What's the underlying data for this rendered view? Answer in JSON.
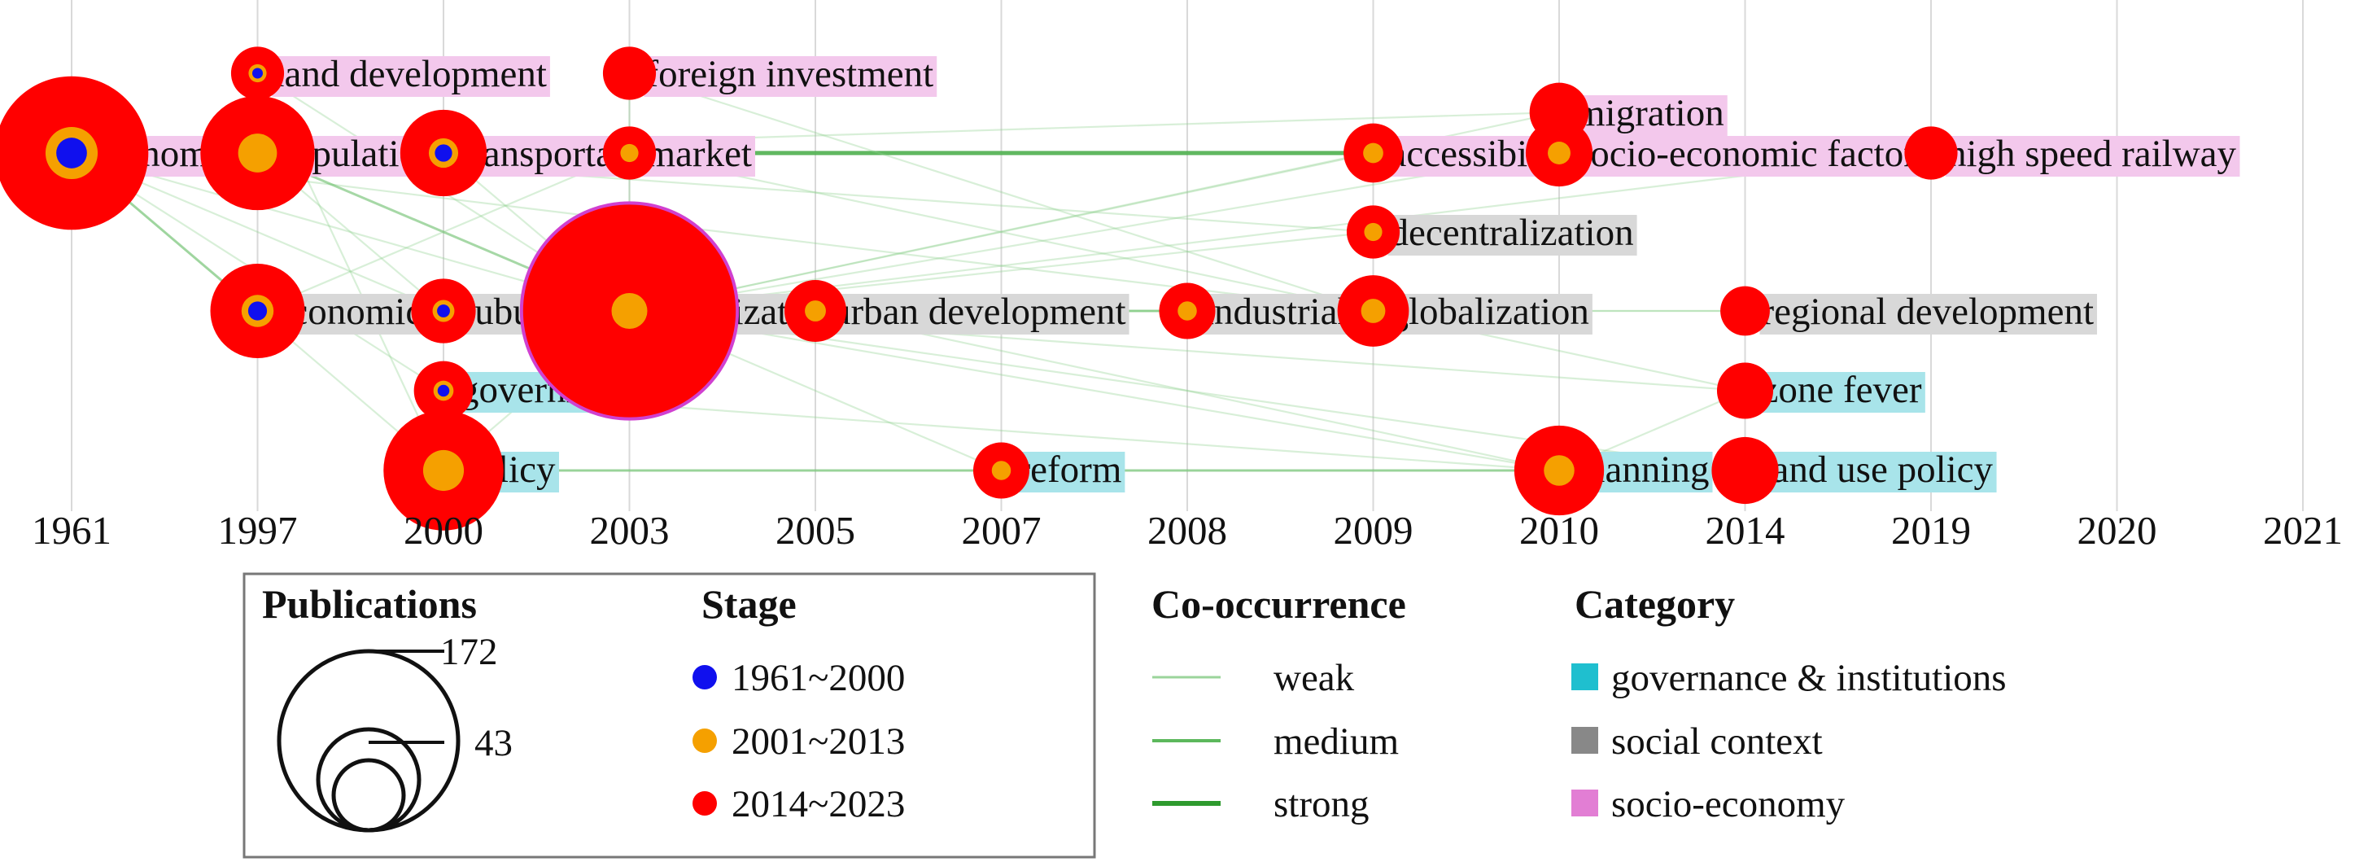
{
  "chart_data": {
    "type": "scatter",
    "title": "",
    "years": [
      "1961",
      "1997",
      "2000",
      "2003",
      "2005",
      "2007",
      "2008",
      "2009",
      "2010",
      "2014",
      "2019",
      "2020",
      "2021"
    ],
    "colors": {
      "stage1": "#1010ee",
      "stage2": "#f5a000",
      "stage3": "#ff0000",
      "edge": "#5cb85c",
      "governance": "#a8e4ea",
      "social": "#d8d8d8",
      "socio": "#f3c8ec",
      "gridline": "#d9d9d9"
    },
    "keywords": [
      {
        "label": "economy",
        "year": "1961",
        "row": 2,
        "count": 80,
        "category": "socio",
        "stage": 1
      },
      {
        "label": "land development",
        "year": "1997",
        "row": 0,
        "count": 5,
        "category": "socio",
        "stage": 1
      },
      {
        "label": "population",
        "year": "1997",
        "row": 2,
        "count": 40,
        "category": "socio",
        "stage": 2
      },
      {
        "label": "economic transition",
        "year": "1997",
        "row": 4,
        "count": 25,
        "category": "social",
        "stage": 1
      },
      {
        "label": "transportation",
        "year": "2000",
        "row": 2,
        "count": 20,
        "category": "socio",
        "stage": 1
      },
      {
        "label": "suburbanization",
        "year": "2000",
        "row": 4,
        "count": 9,
        "category": "social",
        "stage": 1
      },
      {
        "label": "government",
        "year": "2000",
        "row": 5,
        "count": 7,
        "category": "governance",
        "stage": 1
      },
      {
        "label": "policy",
        "year": "2000",
        "row": 6,
        "count": 45,
        "category": "governance",
        "stage": 2
      },
      {
        "label": "foreign investment",
        "year": "2003",
        "row": 0,
        "count": 5,
        "category": "socio",
        "stage": 3
      },
      {
        "label": "market",
        "year": "2003",
        "row": 2,
        "count": 5,
        "category": "socio",
        "stage": 2
      },
      {
        "label": "urbanization",
        "year": "2003",
        "row": 4,
        "count": 172,
        "category": "social",
        "stage": 2
      },
      {
        "label": "urban development",
        "year": "2005",
        "row": 4,
        "count": 8,
        "category": "social",
        "stage": 2
      },
      {
        "label": "reform",
        "year": "2007",
        "row": 6,
        "count": 6,
        "category": "governance",
        "stage": 2
      },
      {
        "label": "industrialization",
        "year": "2008",
        "row": 4,
        "count": 6,
        "category": "social",
        "stage": 2
      },
      {
        "label": "accessibility",
        "year": "2009",
        "row": 2,
        "count": 7,
        "category": "socio",
        "stage": 2
      },
      {
        "label": "decentralization",
        "year": "2009",
        "row": 3,
        "count": 5,
        "category": "social",
        "stage": 2
      },
      {
        "label": "globalization",
        "year": "2009",
        "row": 4,
        "count": 12,
        "category": "social",
        "stage": 2
      },
      {
        "label": "migration",
        "year": "2010",
        "row": 1,
        "count": 7,
        "category": "socio",
        "stage": 3
      },
      {
        "label": "socio-economic factor",
        "year": "2010",
        "row": 2,
        "count": 10,
        "category": "socio",
        "stage": 2
      },
      {
        "label": "planning",
        "year": "2010",
        "row": 6,
        "count": 22,
        "category": "governance",
        "stage": 2
      },
      {
        "label": "regional development",
        "year": "2014",
        "row": 4,
        "count": 4,
        "category": "social",
        "stage": 3
      },
      {
        "label": "zone fever",
        "year": "2014",
        "row": 5,
        "count": 6,
        "category": "governance",
        "stage": 3
      },
      {
        "label": "land use policy",
        "year": "2014",
        "row": 6,
        "count": 10,
        "category": "governance",
        "stage": 3
      },
      {
        "label": "high speed railway",
        "year": "2019",
        "row": 2,
        "count": 5,
        "category": "socio",
        "stage": 3
      }
    ],
    "edges": [
      [
        "economy",
        "transportation",
        1
      ],
      [
        "economy",
        "market",
        1
      ],
      [
        "economy",
        "population",
        2
      ],
      [
        "economy",
        "accessibility",
        3
      ],
      [
        "economy",
        "economic transition",
        2
      ],
      [
        "economy",
        "suburbanization",
        1
      ],
      [
        "economy",
        "urbanization",
        1
      ],
      [
        "economy",
        "policy",
        1
      ],
      [
        "economy",
        "government",
        1
      ],
      [
        "economy",
        "globalization",
        1
      ],
      [
        "population",
        "urbanization",
        2
      ],
      [
        "population",
        "suburbanization",
        1
      ],
      [
        "population",
        "socio-economic factor",
        1
      ],
      [
        "population",
        "migration",
        1
      ],
      [
        "population",
        "decentralization",
        1
      ],
      [
        "land development",
        "policy",
        1
      ],
      [
        "land development",
        "urbanization",
        1
      ],
      [
        "economic transition",
        "urbanization",
        2
      ],
      [
        "economic transition",
        "globalization",
        1
      ],
      [
        "economic transition",
        "market",
        1
      ],
      [
        "transportation",
        "accessibility",
        2
      ],
      [
        "transportation",
        "urbanization",
        1
      ],
      [
        "policy",
        "planning",
        2
      ],
      [
        "policy",
        "urbanization",
        1
      ],
      [
        "policy",
        "land use policy",
        1
      ],
      [
        "policy",
        "reform",
        1
      ],
      [
        "urbanization",
        "industrialization",
        2
      ],
      [
        "urbanization",
        "globalization",
        1
      ],
      [
        "urbanization",
        "decentralization",
        1
      ],
      [
        "urbanization",
        "urban development",
        2
      ],
      [
        "urbanization",
        "planning",
        1
      ],
      [
        "urbanization",
        "accessibility",
        1
      ],
      [
        "urbanization",
        "migration",
        1
      ],
      [
        "urbanization",
        "socio-economic factor",
        1
      ],
      [
        "urbanization",
        "zone fever",
        1
      ],
      [
        "urbanization",
        "regional development",
        1
      ],
      [
        "urbanization",
        "land use policy",
        1
      ],
      [
        "urbanization",
        "high speed railway",
        1
      ],
      [
        "urbanization",
        "reform",
        1
      ],
      [
        "urbanization",
        "foreign investment",
        1
      ],
      [
        "suburbanization",
        "globalization",
        1
      ],
      [
        "government",
        "planning",
        1
      ],
      [
        "reform",
        "land use policy",
        1
      ],
      [
        "industrialization",
        "globalization",
        1
      ],
      [
        "globalization",
        "regional development",
        1
      ],
      [
        "globalization",
        "zone fever",
        1
      ],
      [
        "planning",
        "land use policy",
        1
      ],
      [
        "planning",
        "zone fever",
        1
      ],
      [
        "accessibility",
        "high speed railway",
        1
      ],
      [
        "market",
        "globalization",
        1
      ],
      [
        "foreign investment",
        "globalization",
        1
      ],
      [
        "urban development",
        "planning",
        1
      ]
    ],
    "legend": {
      "publications": {
        "title": "Publications",
        "max_label": "172",
        "mid_label": "43"
      },
      "stage": {
        "title": "Stage",
        "items": [
          "1961~2000",
          "2001~2013",
          "2014~2023"
        ]
      },
      "cooccurrence": {
        "title": "Co-occurrence",
        "items": [
          "weak",
          "medium",
          "strong"
        ]
      },
      "category": {
        "title": "Category",
        "items": [
          "governance & institutions",
          "social context",
          "socio-economy"
        ]
      }
    }
  }
}
